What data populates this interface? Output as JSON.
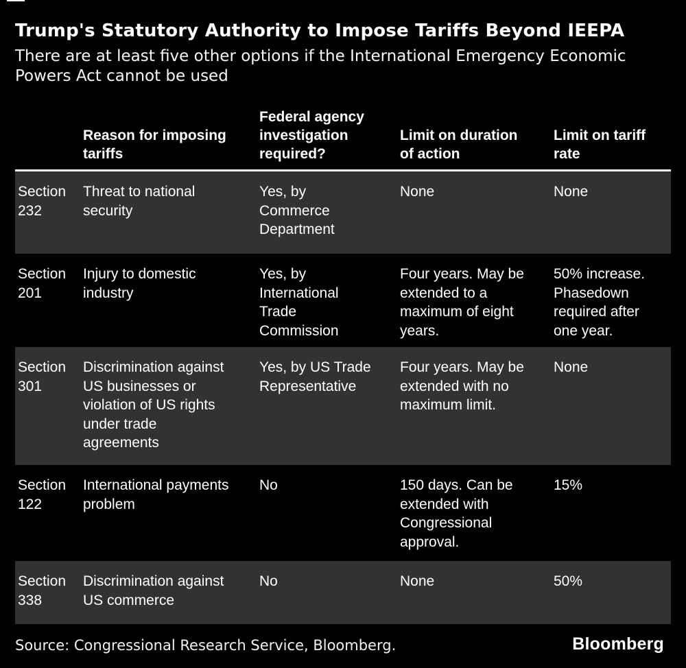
{
  "accent_colors": {
    "background": "#000000",
    "shaded_row": "#323232",
    "text": "#ffffff",
    "header_rule": "#f5f5f5"
  },
  "header": {
    "title": "Trump's Statutory Authority to Impose Tariffs Beyond IEEPA",
    "subtitle": "There are at least five other options if the International Emergency Economic\nPowers Act cannot be used"
  },
  "table": {
    "headers": {
      "section": "",
      "reason": "Reason for imposing\ntariffs",
      "investigation": "Federal agency\ninvestigation\nrequired?",
      "duration": "Limit on duration\nof action",
      "rate": "Limit on tariff\nrate"
    },
    "rows": [
      {
        "cells": [
          "Section\n232",
          "Threat to national\nsecurity",
          "Yes, by\nCommerce\nDepartment",
          "None",
          "None"
        ]
      },
      {
        "cells": [
          "Section\n201",
          "Injury to domestic\nindustry",
          "Yes, by\nInternational\nTrade\nCommission",
          "Four years. May be\nextended to a\nmaximum of eight\nyears.",
          "50% increase.\nPhasedown\nrequired after\none year."
        ]
      },
      {
        "cells": [
          "Section\n301",
          "Discrimination against\nUS businesses or\nviolation of US rights\nunder trade\nagreements",
          "Yes, by US Trade\nRepresentative",
          "Four years. May be\nextended with no\nmaximum limit.",
          "None"
        ]
      },
      {
        "cells": [
          "Section\n122",
          "International payments\nproblem",
          "No",
          "150 days. Can be\nextended with\nCongressional\napproval.",
          "15%"
        ]
      },
      {
        "cells": [
          "Section\n338",
          "Discrimination against\nUS commerce",
          "No",
          "None",
          "50%"
        ]
      }
    ]
  },
  "footer": {
    "source": "Source: Congressional Research Service, Bloomberg.",
    "logo": "Bloomberg"
  },
  "chart_data": {
    "type": "table",
    "title": "Trump's Statutory Authority to Impose Tariffs Beyond IEEPA",
    "subtitle": "There are at least five other options if the International Emergency Economic Powers Act cannot be used",
    "columns": [
      "",
      "Reason for imposing tariffs",
      "Federal agency investigation required?",
      "Limit on duration of action",
      "Limit on tariff rate"
    ],
    "rows": [
      [
        "Section 232",
        "Threat to national security",
        "Yes, by Commerce Department",
        "None",
        "None"
      ],
      [
        "Section 201",
        "Injury to domestic industry",
        "Yes, by International Trade Commission",
        "Four years. May be extended to a maximum of eight years.",
        "50% increase. Phasedown required after one year."
      ],
      [
        "Section 301",
        "Discrimination against US businesses or violation of US rights under trade agreements",
        "Yes, by US Trade Representative",
        "Four years. May be extended with no maximum limit.",
        "None"
      ],
      [
        "Section 122",
        "International payments problem",
        "No",
        "150 days. Can be extended with Congressional approval.",
        "15%"
      ],
      [
        "Section 338",
        "Discrimination against US commerce",
        "No",
        "None",
        "50%"
      ]
    ],
    "source": "Congressional Research Service, Bloomberg",
    "layout": {
      "shaded_rows": [
        0,
        2,
        4
      ],
      "header_rule": true,
      "grid": "off"
    }
  }
}
